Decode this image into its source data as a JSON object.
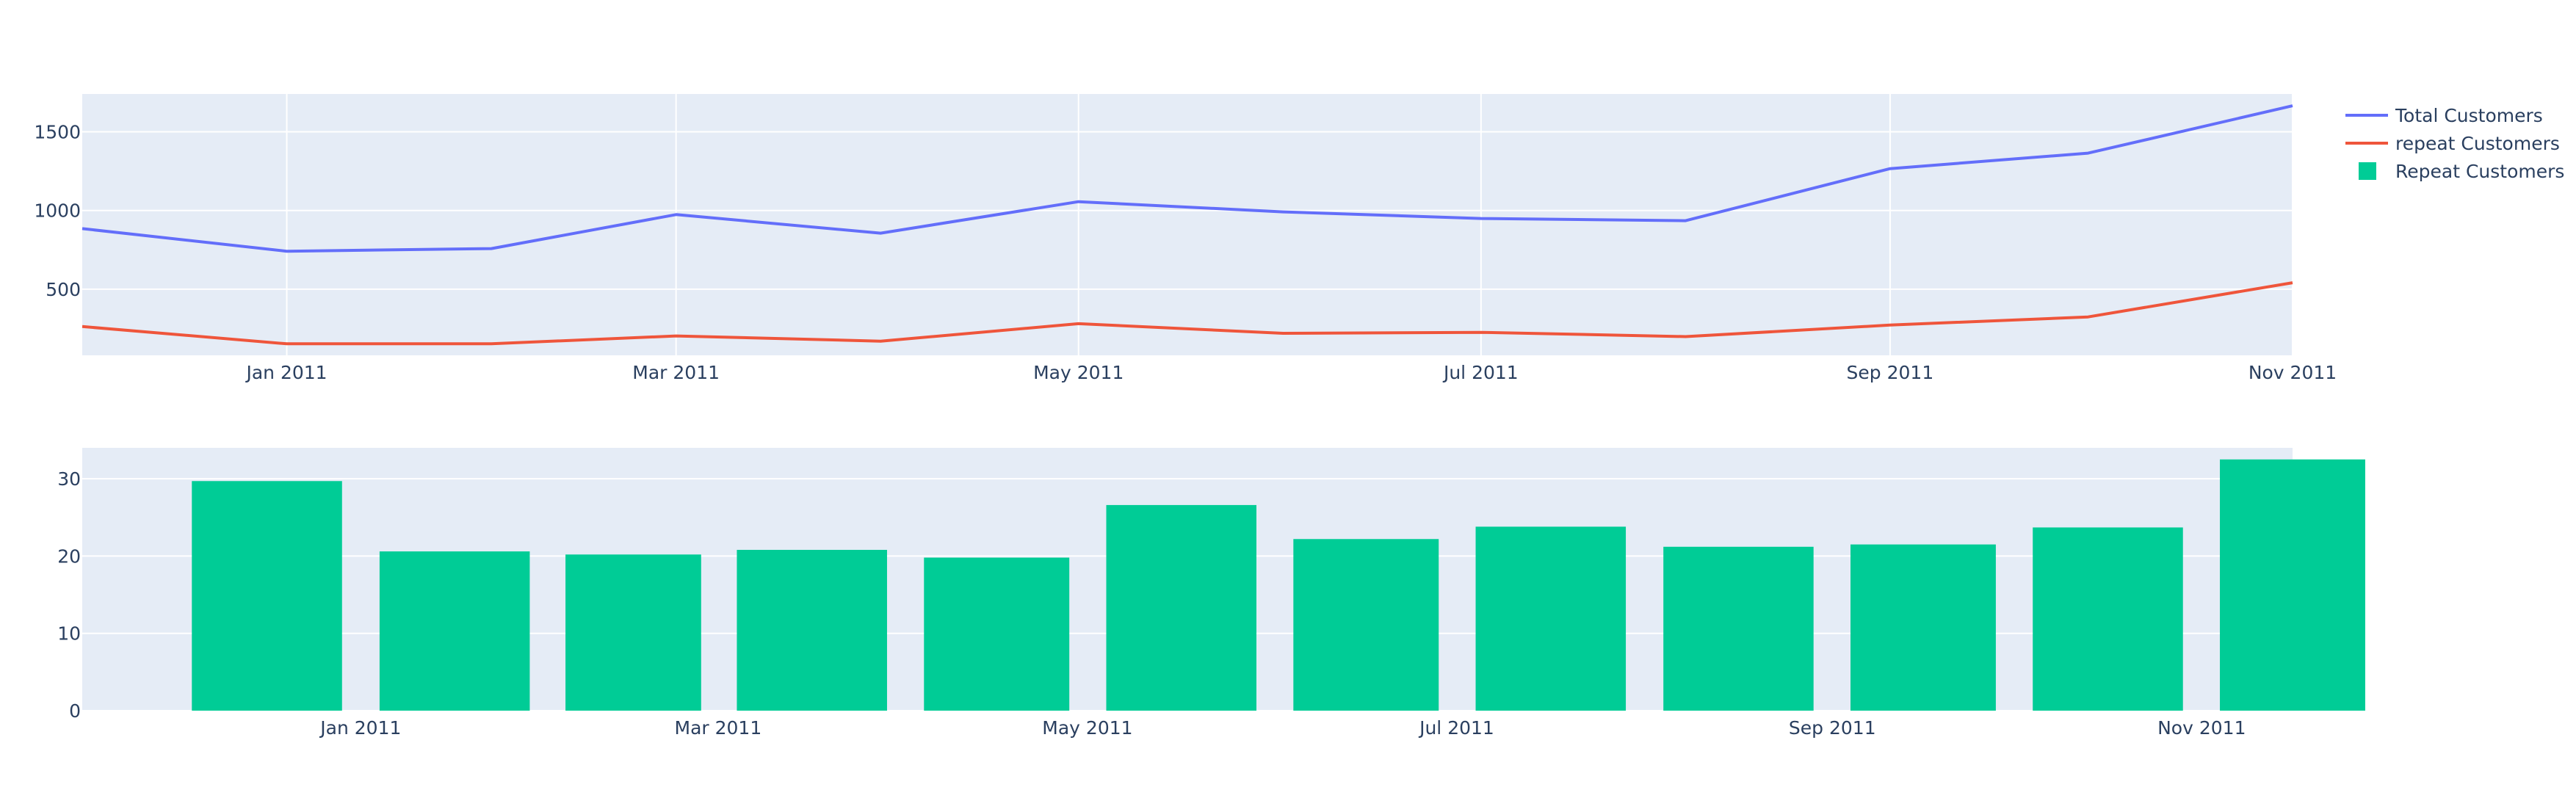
{
  "chart_data": [
    {
      "type": "line",
      "x": [
        "2010-12-01",
        "2011-01-01",
        "2011-02-01",
        "2011-03-01",
        "2011-04-01",
        "2011-05-01",
        "2011-06-01",
        "2011-07-01",
        "2011-08-01",
        "2011-09-01",
        "2011-10-01",
        "2011-11-01"
      ],
      "x_tick_values": [
        "2011-01-01",
        "2011-03-01",
        "2011-05-01",
        "2011-07-01",
        "2011-09-01",
        "2011-11-01"
      ],
      "x_tick_labels": [
        "Jan 2011",
        "Mar 2011",
        "May 2011",
        "Jul 2011",
        "Sep 2011",
        "Nov 2011"
      ],
      "y_ticks": [
        500,
        1000,
        1500
      ],
      "ylim": [
        80,
        1740
      ],
      "grid": true,
      "series": [
        {
          "name": "Total Customers",
          "color": "#636efa",
          "values": [
            885,
            741,
            758,
            974,
            856,
            1056,
            991,
            949,
            935,
            1266,
            1364,
            1665
          ]
        },
        {
          "name": "repeat Customers",
          "color": "#ef553b",
          "values": [
            263,
            153,
            153,
            203,
            170,
            281,
            220,
            226,
            199,
            272,
            324,
            541
          ]
        }
      ]
    },
    {
      "type": "bar",
      "x": [
        "2010-12-01",
        "2011-01-01",
        "2011-02-01",
        "2011-03-01",
        "2011-04-01",
        "2011-05-01",
        "2011-06-01",
        "2011-07-01",
        "2011-08-01",
        "2011-09-01",
        "2011-10-01",
        "2011-11-01"
      ],
      "x_tick_values": [
        "2011-01-01",
        "2011-03-01",
        "2011-05-01",
        "2011-07-01",
        "2011-09-01",
        "2011-11-01"
      ],
      "x_tick_labels": [
        "Jan 2011",
        "Mar 2011",
        "May 2011",
        "Jul 2011",
        "Sep 2011",
        "Nov 2011"
      ],
      "y_ticks": [
        0,
        10,
        20,
        30
      ],
      "ylim": [
        0,
        34
      ],
      "grid": true,
      "series": [
        {
          "name": "Repeat Customers",
          "color": "#00cc96",
          "values": [
            29.7,
            20.6,
            20.2,
            20.8,
            19.8,
            26.6,
            22.2,
            23.8,
            21.2,
            21.5,
            23.7,
            32.5
          ]
        }
      ]
    }
  ],
  "legend": {
    "placement": "top-right",
    "items": [
      {
        "label": "Total Customers",
        "symbol": "line",
        "color": "#636efa"
      },
      {
        "label": "repeat Customers",
        "symbol": "line",
        "color": "#ef553b"
      },
      {
        "label": "Repeat Customers",
        "symbol": "square",
        "color": "#00cc96"
      }
    ]
  },
  "colors": {
    "plot_background": "#e5ecf6",
    "gridline": "#ffffff",
    "text": "#2a3f5f"
  }
}
